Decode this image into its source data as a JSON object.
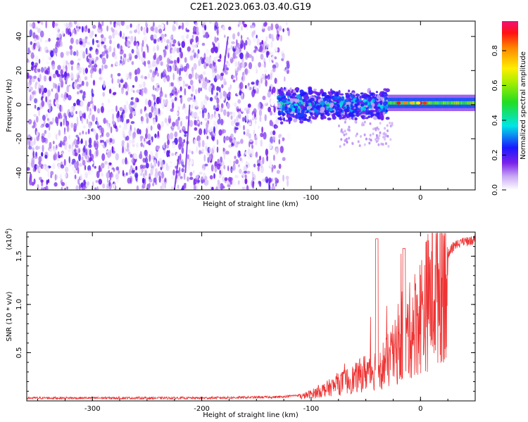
{
  "title": "C2E1.2023.063.03.40.G19",
  "chart_data": [
    {
      "type": "heatmap",
      "xlabel": "Height of straight line (km)",
      "ylabel": "Frequency (Hz)",
      "xlim": [
        -360,
        50
      ],
      "ylim": [
        -50,
        49
      ],
      "xticks": [
        "-300",
        "-200",
        "-100",
        "0"
      ],
      "xtick_values": [
        -300,
        -200,
        -100,
        0
      ],
      "yticks": [
        "-40",
        "-20",
        "0",
        "20",
        "40"
      ],
      "ytick_values": [
        -40,
        -20,
        0,
        20,
        40
      ],
      "colorbar": {
        "label": "Normalized spectral amplitude",
        "range": [
          0,
          0.97
        ],
        "ticks": [
          "0.0",
          "0.2",
          "0.4",
          "0.6",
          "0.8"
        ],
        "tick_values": [
          0.0,
          0.2,
          0.4,
          0.6,
          0.8
        ]
      },
      "regions": [
        {
          "x_range": [
            -360,
            -130
          ],
          "freq_range": [
            -50,
            49
          ],
          "amplitude_range": [
            0.0,
            0.2
          ]
        },
        {
          "x_range": [
            -130,
            -30
          ],
          "freq_center": 0,
          "freq_halfwidth": 10,
          "amplitude_range": [
            0.15,
            0.45
          ]
        },
        {
          "x_range": [
            -30,
            50
          ],
          "freq_center": 1,
          "freq_halfwidth": 3,
          "amplitude_range": [
            0.4,
            0.97
          ]
        }
      ]
    },
    {
      "type": "line",
      "xlabel": "Height of straight line (km)",
      "ylabel": "SNR (10 * v/v)",
      "exponent_label": "(x10",
      "exponent_power": "4",
      "exponent_close": ")",
      "xlim": [
        -360,
        50
      ],
      "ylim": [
        0,
        17500
      ],
      "xticks": [
        "-300",
        "-200",
        "-100",
        "0"
      ],
      "xtick_values": [
        -300,
        -200,
        -100,
        0
      ],
      "yticks": [
        "0.5",
        "1.0",
        "1.5"
      ],
      "ytick_values": [
        5000,
        10000,
        15000
      ],
      "series": [
        {
          "color": "#ee3333",
          "x": [
            -360,
            -300,
            -200,
            -130,
            -110,
            -100,
            -90,
            -80,
            -70,
            -60,
            -50,
            -40,
            -30,
            -20,
            -10,
            0,
            10,
            20,
            30,
            40,
            50
          ],
          "y": [
            300,
            300,
            300,
            400,
            600,
            1000,
            1500,
            2000,
            2600,
            3000,
            3800,
            4200,
            5000,
            6500,
            8500,
            10500,
            12500,
            15000,
            16500,
            17000,
            17200
          ]
        }
      ]
    }
  ]
}
